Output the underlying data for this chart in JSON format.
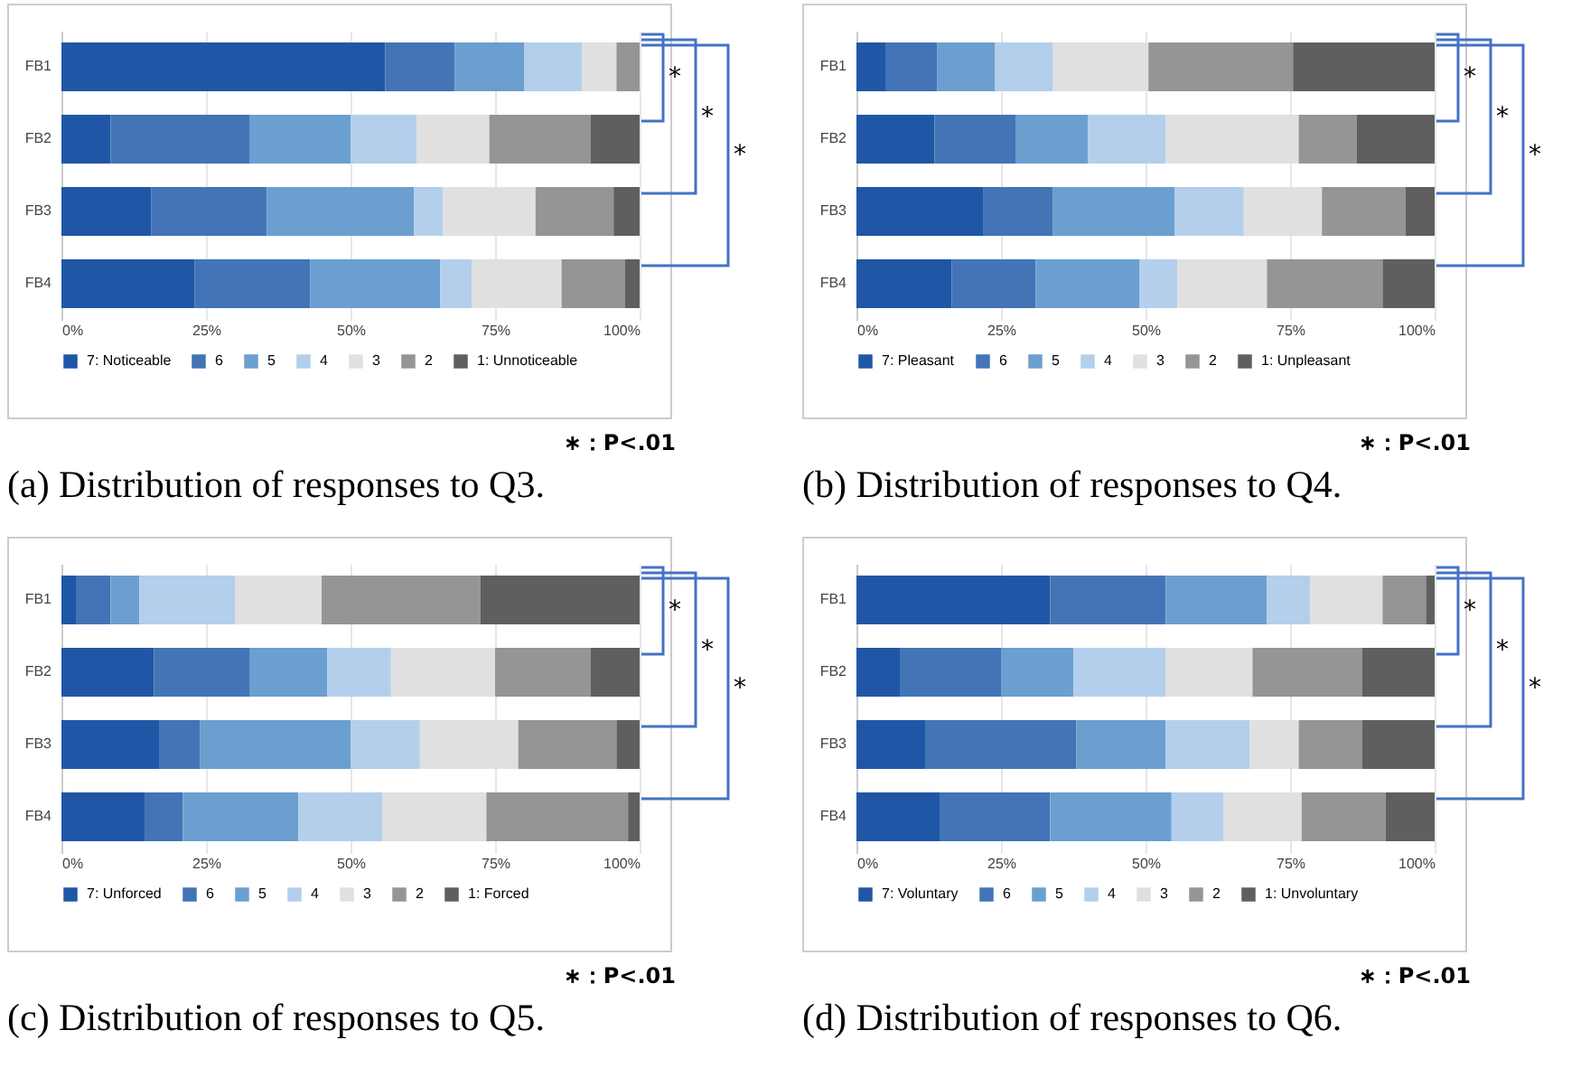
{
  "chart_data": [
    {
      "type": "bar",
      "orientation": "horizontal",
      "stacked": true,
      "title": "(a) Distribution of responses to Q3.",
      "categories": [
        "FB1",
        "FB2",
        "FB3",
        "FB4"
      ],
      "xlim": [
        0,
        100
      ],
      "xticks": [
        {
          "value": 0,
          "label": "0%"
        },
        {
          "value": 25,
          "label": "25%"
        },
        {
          "value": 50,
          "label": "50%"
        },
        {
          "value": 75,
          "label": "75%"
        },
        {
          "value": 100,
          "label": "100%"
        }
      ],
      "grid": "x",
      "legend": "bottom",
      "series": [
        {
          "name": "7: Noticeable",
          "color": "#1f57a6",
          "values": [
            56,
            8.5,
            15.5,
            23
          ]
        },
        {
          "name": "6",
          "color": "#4274b6",
          "values": [
            12,
            24,
            20,
            20
          ]
        },
        {
          "name": "5",
          "color": "#6b9fd0",
          "values": [
            12,
            17.5,
            25.5,
            22.5
          ]
        },
        {
          "name": "4",
          "color": "#b3cfeb",
          "values": [
            10,
            11.5,
            5,
            5.5
          ]
        },
        {
          "name": "3",
          "color": "#e0e0e0",
          "values": [
            6,
            12.5,
            16,
            15.5
          ]
        },
        {
          "name": "2",
          "color": "#959595",
          "values": [
            4,
            17.5,
            13.5,
            11
          ]
        },
        {
          "name": "1: Unnoticeable",
          "color": "#5f5f5f",
          "values": [
            0,
            8.5,
            4.5,
            2.5
          ]
        }
      ],
      "annotations": [
        "*",
        "*",
        "*",
        "∗：P<.01"
      ]
    },
    {
      "type": "bar",
      "orientation": "horizontal",
      "stacked": true,
      "title": "(b) Distribution of responses to Q4.",
      "categories": [
        "FB1",
        "FB2",
        "FB3",
        "FB4"
      ],
      "xlim": [
        0,
        100
      ],
      "xticks": [
        {
          "value": 0,
          "label": "0%"
        },
        {
          "value": 25,
          "label": "25%"
        },
        {
          "value": 50,
          "label": "50%"
        },
        {
          "value": 75,
          "label": "75%"
        },
        {
          "value": 100,
          "label": "100%"
        }
      ],
      "grid": "x",
      "legend": "bottom",
      "series": [
        {
          "name": "7: Pleasant",
          "color": "#1f57a6",
          "values": [
            5,
            13.5,
            22,
            16.5
          ]
        },
        {
          "name": "6",
          "color": "#4274b6",
          "values": [
            9,
            14,
            12,
            14.5
          ]
        },
        {
          "name": "5",
          "color": "#6b9fd0",
          "values": [
            10,
            12.5,
            21,
            18
          ]
        },
        {
          "name": "4",
          "color": "#b3cfeb",
          "values": [
            10,
            13.5,
            12,
            6.5
          ]
        },
        {
          "name": "3",
          "color": "#e0e0e0",
          "values": [
            16.5,
            23,
            13.5,
            15.5
          ]
        },
        {
          "name": "2",
          "color": "#959595",
          "values": [
            25,
            10,
            14.5,
            20
          ]
        },
        {
          "name": "1: Unpleasant",
          "color": "#5f5f5f",
          "values": [
            24.5,
            13.5,
            5,
            9
          ]
        }
      ],
      "annotations": [
        "*",
        "*",
        "*",
        "∗：P<.01"
      ]
    },
    {
      "type": "bar",
      "orientation": "horizontal",
      "stacked": true,
      "title": "(c) Distribution of responses to Q5.",
      "categories": [
        "FB1",
        "FB2",
        "FB3",
        "FB4"
      ],
      "xlim": [
        0,
        100
      ],
      "xticks": [
        {
          "value": 0,
          "label": "0%"
        },
        {
          "value": 25,
          "label": "25%"
        },
        {
          "value": 50,
          "label": "50%"
        },
        {
          "value": 75,
          "label": "75%"
        },
        {
          "value": 100,
          "label": "100%"
        }
      ],
      "grid": "x",
      "legend": "bottom",
      "series": [
        {
          "name": "7: Unforced",
          "color": "#1f57a6",
          "values": [
            2.5,
            16,
            17,
            14.5
          ]
        },
        {
          "name": "6",
          "color": "#4274b6",
          "values": [
            6,
            16.5,
            7,
            6.5
          ]
        },
        {
          "name": "5",
          "color": "#6b9fd0",
          "values": [
            5,
            13.5,
            26,
            20
          ]
        },
        {
          "name": "4",
          "color": "#b3cfeb",
          "values": [
            16.5,
            11,
            12,
            14.5
          ]
        },
        {
          "name": "3",
          "color": "#e0e0e0",
          "values": [
            15,
            18,
            17,
            18
          ]
        },
        {
          "name": "2",
          "color": "#959595",
          "values": [
            27.5,
            16.5,
            17,
            24.5
          ]
        },
        {
          "name": "1: Forced",
          "color": "#5f5f5f",
          "values": [
            27.5,
            8.5,
            4,
            2
          ]
        }
      ],
      "annotations": [
        "*",
        "*",
        "*",
        "∗：P<.01"
      ]
    },
    {
      "type": "bar",
      "orientation": "horizontal",
      "stacked": true,
      "title": "(d) Distribution of responses to Q6.",
      "categories": [
        "FB1",
        "FB2",
        "FB3",
        "FB4"
      ],
      "xlim": [
        0,
        100
      ],
      "xticks": [
        {
          "value": 0,
          "label": "0%"
        },
        {
          "value": 25,
          "label": "25%"
        },
        {
          "value": 50,
          "label": "50%"
        },
        {
          "value": 75,
          "label": "75%"
        },
        {
          "value": 100,
          "label": "100%"
        }
      ],
      "grid": "x",
      "legend": "bottom",
      "series": [
        {
          "name": "7: Voluntary",
          "color": "#1f57a6",
          "values": [
            33.5,
            7.5,
            12,
            14.5
          ]
        },
        {
          "name": "6",
          "color": "#4274b6",
          "values": [
            20,
            17.5,
            26,
            19
          ]
        },
        {
          "name": "5",
          "color": "#6b9fd0",
          "values": [
            17.5,
            12.5,
            15.5,
            21
          ]
        },
        {
          "name": "4",
          "color": "#b3cfeb",
          "values": [
            7.5,
            16,
            14.5,
            9
          ]
        },
        {
          "name": "3",
          "color": "#e0e0e0",
          "values": [
            12.5,
            15,
            8.5,
            13.5
          ]
        },
        {
          "name": "2",
          "color": "#959595",
          "values": [
            7.5,
            19,
            11,
            14.5
          ]
        },
        {
          "name": "1: Unvoluntary",
          "color": "#5f5f5f",
          "values": [
            1.5,
            12.5,
            12.5,
            8.5
          ]
        }
      ],
      "annotations": [
        "*",
        "*",
        "*",
        "∗：P<.01"
      ]
    }
  ]
}
